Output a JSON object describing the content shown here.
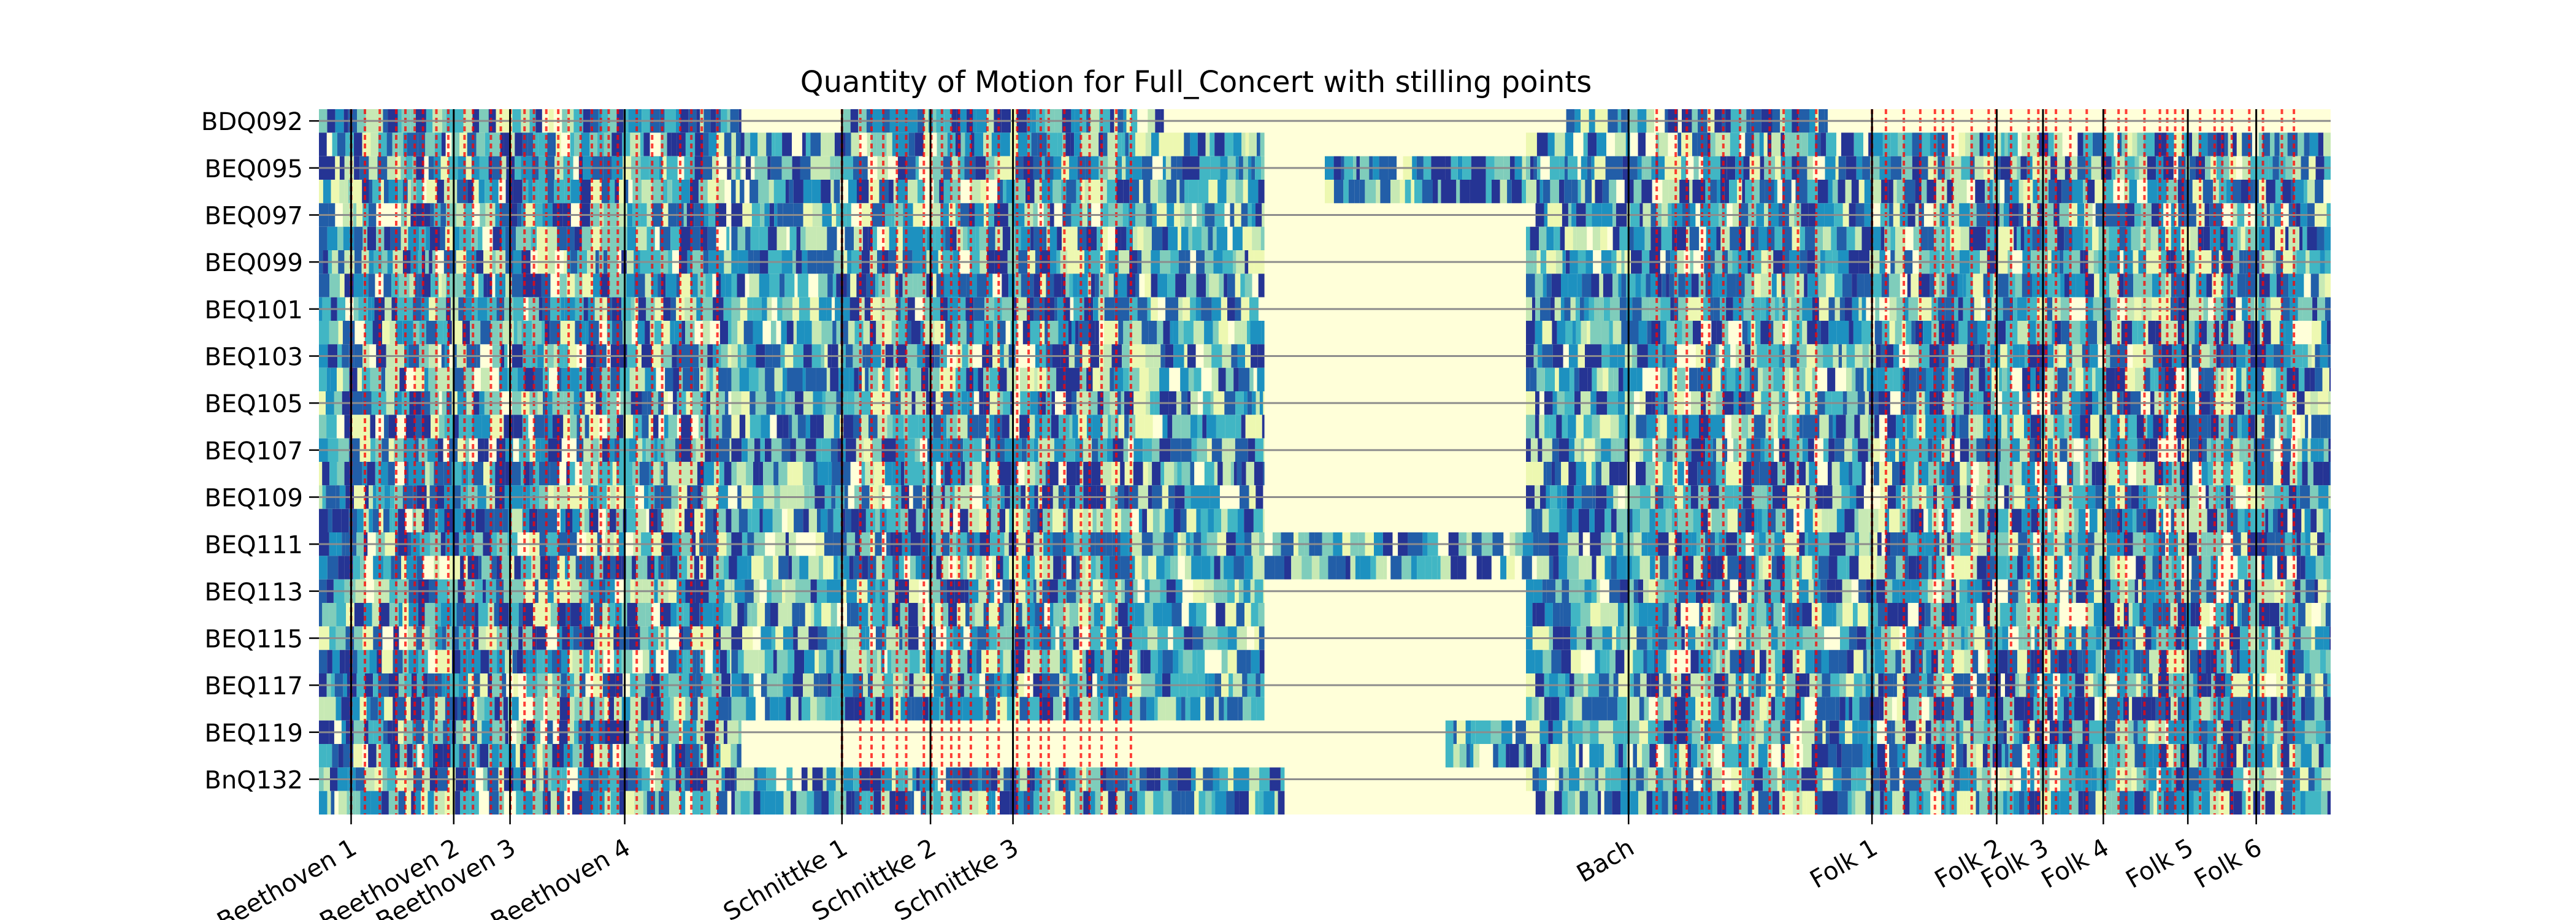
{
  "chart_data": {
    "type": "heatmap",
    "title": "Quantity of Motion for Full_Concert with stilling points",
    "xlabel": "",
    "ylabel": "",
    "ytick_labels": [
      "BDQ092",
      "BEQ095",
      "BEQ097",
      "BEQ099",
      "BEQ101",
      "BEQ103",
      "BEQ105",
      "BEQ107",
      "BEQ109",
      "BEQ111",
      "BEQ113",
      "BEQ115",
      "BEQ117",
      "BEQ119",
      "BnQ132"
    ],
    "row_count": 30,
    "sections": [
      {
        "label": "Beethoven 1",
        "x": 0.016
      },
      {
        "label": "Beethoven 2",
        "x": 0.067
      },
      {
        "label": "Beethoven 3",
        "x": 0.095
      },
      {
        "label": "Beethoven 4",
        "x": 0.152
      },
      {
        "label": "Schnittke 1",
        "x": 0.26
      },
      {
        "label": "Schnittke 2",
        "x": 0.304
      },
      {
        "label": "Schnittke 3",
        "x": 0.345
      },
      {
        "label": "Bach",
        "x": 0.651
      },
      {
        "label": "Folk 1",
        "x": 0.772
      },
      {
        "label": "Folk 2",
        "x": 0.834
      },
      {
        "label": "Folk 3",
        "x": 0.857
      },
      {
        "label": "Folk 4",
        "x": 0.887
      },
      {
        "label": "Folk 5",
        "x": 0.929
      },
      {
        "label": "Folk 6",
        "x": 0.963
      }
    ],
    "stilling_point_regions": [
      [
        0.016,
        0.205
      ],
      [
        0.26,
        0.405
      ],
      [
        0.665,
        0.745
      ],
      [
        0.772,
        0.985
      ]
    ],
    "active_segments": [
      {
        "rows": [
          0,
          1,
          2,
          3,
          4,
          5,
          6,
          7,
          8,
          9,
          10,
          11,
          12,
          13,
          14,
          15,
          16,
          17,
          18,
          19,
          20,
          21,
          22,
          23,
          24,
          25,
          26,
          27,
          28,
          29
        ],
        "x": [
          0.0,
          0.21
        ]
      },
      {
        "rows": [
          0
        ],
        "x": [
          0.26,
          0.42
        ]
      },
      {
        "rows": [
          1,
          2,
          3,
          4,
          5,
          6,
          7,
          8,
          9,
          10,
          11,
          12,
          13,
          14,
          15,
          16,
          17,
          18,
          19,
          20,
          21,
          22,
          23,
          24,
          25
        ],
        "x": [
          0.205,
          0.47
        ]
      },
      {
        "rows": [
          2,
          3
        ],
        "x": [
          0.5,
          0.6
        ]
      },
      {
        "rows": [
          18,
          19
        ],
        "x": [
          0.47,
          0.6
        ]
      },
      {
        "rows": [
          26,
          27
        ],
        "x": [
          0.56,
          0.6
        ]
      },
      {
        "rows": [
          28,
          29
        ],
        "x": [
          0.205,
          0.48
        ]
      },
      {
        "rows": [
          0
        ],
        "x": [
          0.62,
          0.75
        ]
      },
      {
        "rows": [
          1,
          2,
          3,
          4,
          5,
          6,
          7,
          8,
          9,
          10,
          11,
          12,
          13,
          14,
          15,
          16,
          17,
          18,
          19,
          20,
          21,
          22,
          23,
          24,
          25,
          26,
          27,
          28,
          29
        ],
        "x": [
          0.6,
          1.0
        ]
      }
    ],
    "colormap": [
      "#ffffd9",
      "#edf8b1",
      "#c7e9b4",
      "#7fcdbb",
      "#41b6c4",
      "#1d91c0",
      "#225ea8",
      "#253494"
    ],
    "background_color": "#ffffd9",
    "stilling_color": "#ff0000",
    "row_line_color": "#8c8c8c",
    "section_line_color": "#000000",
    "grid": false
  }
}
